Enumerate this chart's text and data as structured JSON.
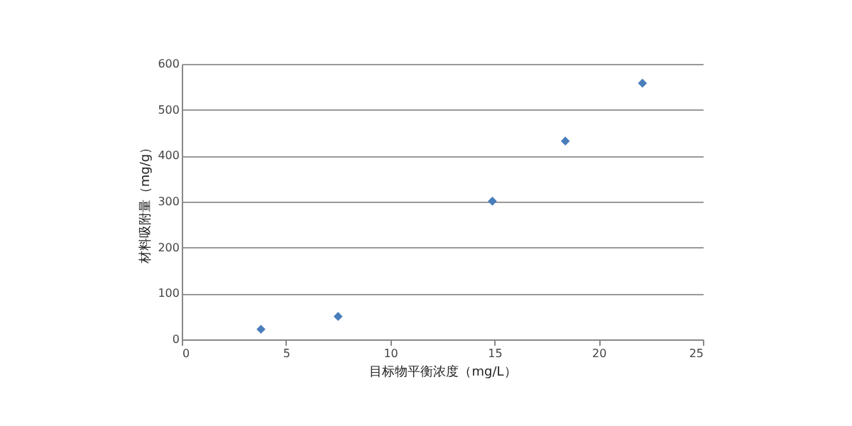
{
  "chart_data": {
    "type": "scatter",
    "xlabel": "目标物平衡浓度（mg/L）",
    "ylabel": "材料吸附量（mg/g）",
    "x": [
      3.8,
      7.5,
      14.9,
      18.4,
      22.1
    ],
    "series": [
      {
        "color": "#4a7ebb",
        "values": [
          22,
          50,
          301,
          432,
          558
        ]
      }
    ],
    "xlim": [
      0,
      25
    ],
    "xticks": [
      0,
      5,
      10,
      15,
      20,
      25
    ],
    "ylim": [
      0,
      600
    ],
    "yticks": [
      0,
      100,
      200,
      300,
      400,
      500,
      600
    ],
    "grid": "y",
    "marker": "diamond",
    "legend": false
  }
}
